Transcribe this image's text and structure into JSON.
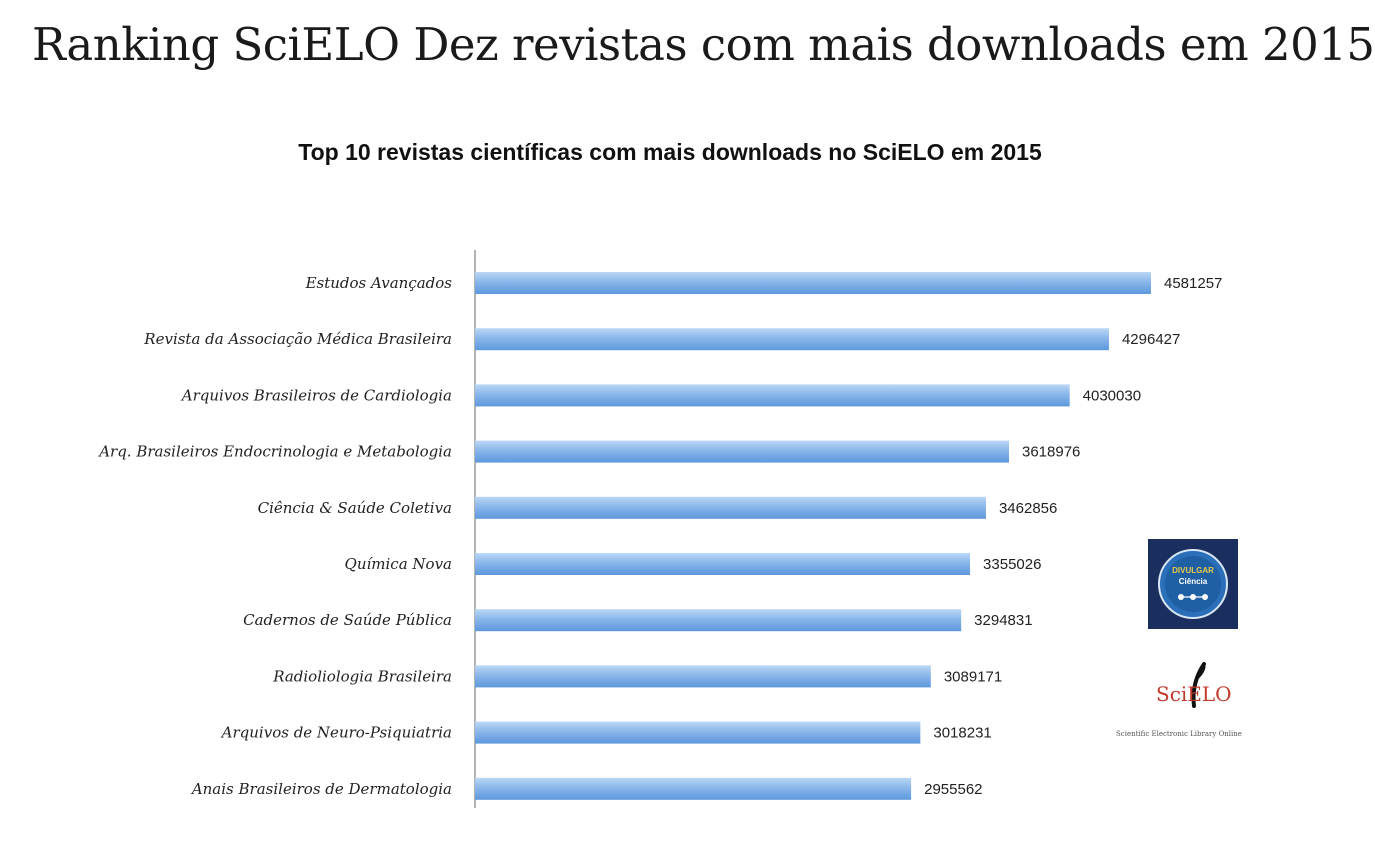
{
  "page": {
    "title": "Ranking SciELO Dez revistas com mais downloads em 2015"
  },
  "colors": {
    "bar_top": "#bcd7f5",
    "bar_bottom": "#5c98dc",
    "axis": "#9a9a9a",
    "logo_dark": "#1b2f5e",
    "logo_ring": "#2a6fb8",
    "scielo_red": "#c0392b"
  },
  "logos": {
    "divulgar": {
      "icon": "divulgar-ciencia-logo",
      "line1": "DIVULGAR",
      "line2": "Ciência"
    },
    "scielo": {
      "icon": "scielo-logo",
      "wordmark": "SciELO",
      "tagline": "Scientific Electronic Library Online"
    }
  },
  "chart_data": {
    "type": "bar",
    "orientation": "horizontal",
    "title": "Top 10 revistas científicas com mais downloads no SciELO em 2015",
    "xlabel": "",
    "ylabel": "",
    "xlim": [
      0,
      4700000
    ],
    "grid": false,
    "legend": "none",
    "categories": [
      "Estudos Avançados",
      "Revista da Associação Médica Brasileira",
      "Arquivos Brasileiros de Cardiologia",
      "Arq. Brasileiros Endocrinologia e Metabologia",
      "Ciência & Saúde Coletiva",
      "Química Nova",
      "Cadernos de Saúde Pública",
      "Radioliologia Brasileira",
      "Arquivos de Neuro-Psiquiatria",
      "Anais Brasileiros de Dermatologia"
    ],
    "values": [
      4581257,
      4296427,
      4030030,
      3618976,
      3462856,
      3355026,
      3294831,
      3089171,
      3018231,
      2955562
    ]
  }
}
